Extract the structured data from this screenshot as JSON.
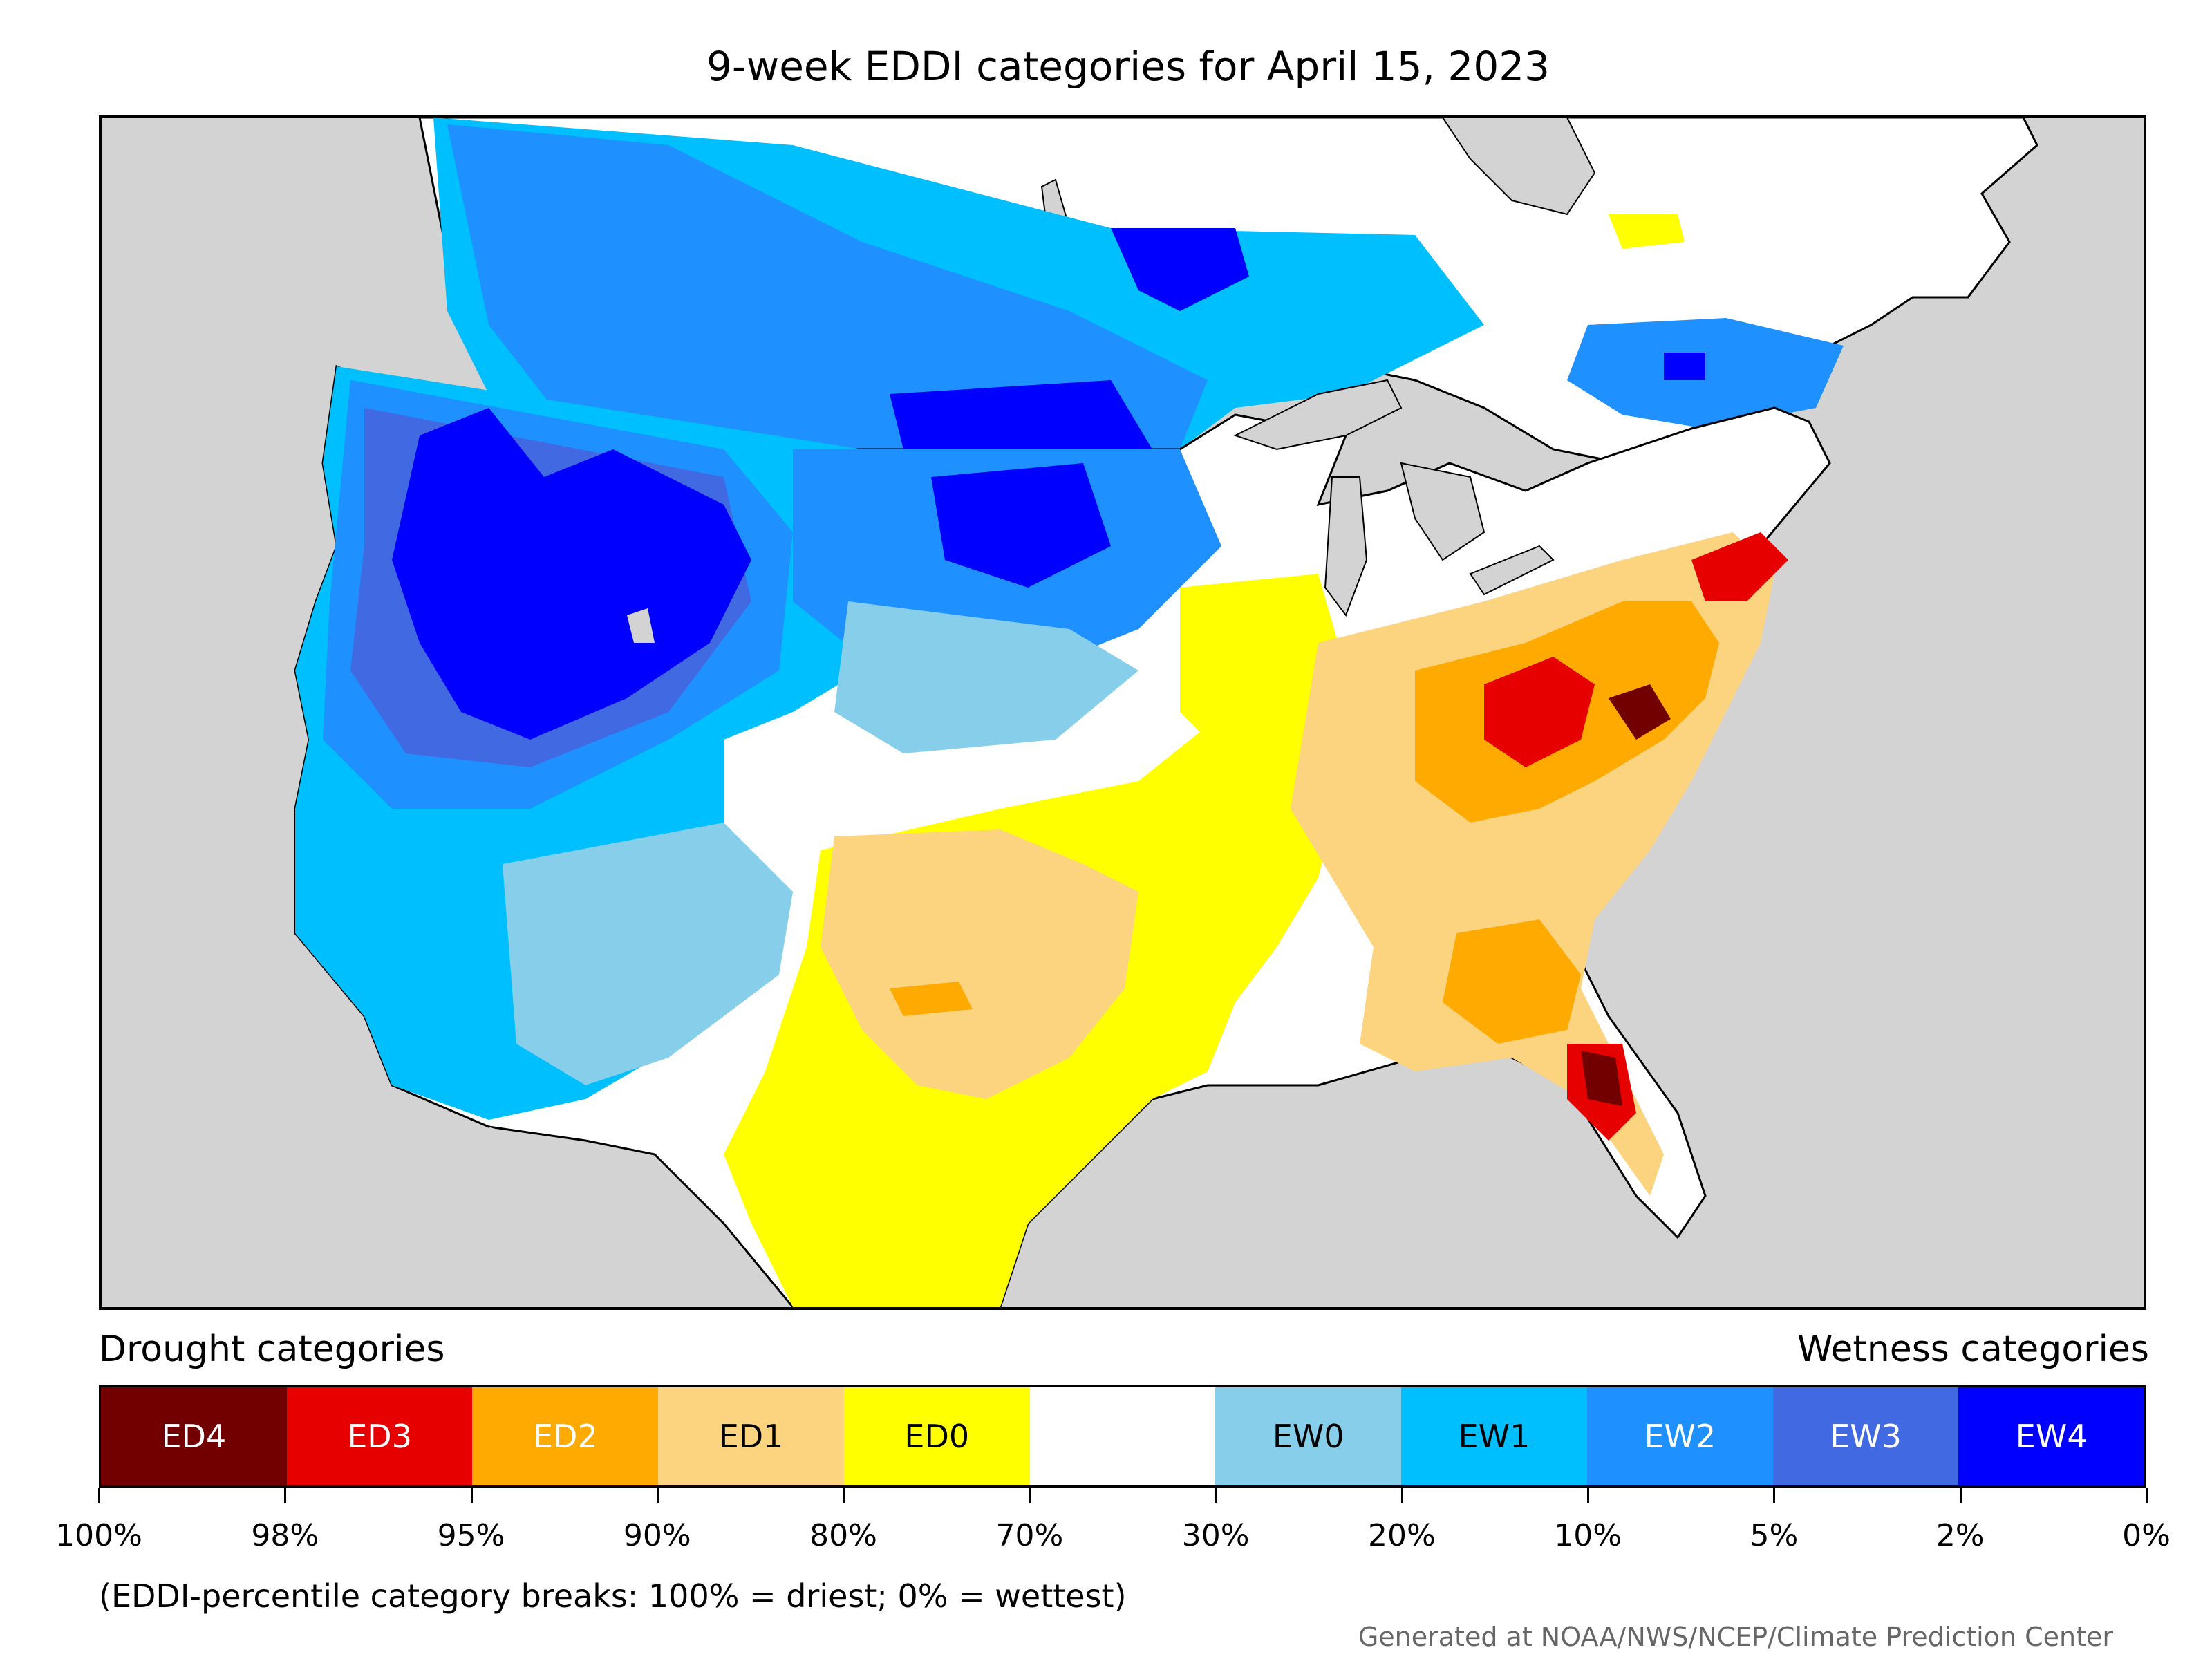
{
  "title": "9-week EDDI categories for April 15, 2023",
  "legend": {
    "drought_label": "Drought categories",
    "wetness_label": "Wetness categories",
    "categories": [
      {
        "label": "ED4",
        "color": "#730000",
        "text_color": "#ffffff"
      },
      {
        "label": "ED3",
        "color": "#e60000",
        "text_color": "#ffffff"
      },
      {
        "label": "ED2",
        "color": "#ffaa00",
        "text_color": "#ffffff"
      },
      {
        "label": "ED1",
        "color": "#fcd37f",
        "text_color": "#000000"
      },
      {
        "label": "ED0",
        "color": "#ffff00",
        "text_color": "#000000"
      },
      {
        "label": "",
        "color": "#ffffff",
        "text_color": "#000000"
      },
      {
        "label": "EW0",
        "color": "#87ceeb",
        "text_color": "#000000"
      },
      {
        "label": "EW1",
        "color": "#00bfff",
        "text_color": "#000000"
      },
      {
        "label": "EW2",
        "color": "#1e90ff",
        "text_color": "#ffffff"
      },
      {
        "label": "EW3",
        "color": "#4169e1",
        "text_color": "#ffffff"
      },
      {
        "label": "EW4",
        "color": "#0000ff",
        "text_color": "#ffffff"
      }
    ],
    "ticks": [
      "100%",
      "98%",
      "95%",
      "90%",
      "80%",
      "70%",
      "30%",
      "20%",
      "10%",
      "5%",
      "2%",
      "0%"
    ]
  },
  "note": "(EDDI-percentile category breaks: 100% = driest; 0% = wettest)",
  "credit": "Generated at NOAA/NWS/NCEP/Climate Prediction Center",
  "map": {
    "land_color": "#ffffff",
    "water_color": "#d3d3d3",
    "border_color": "#000000"
  }
}
